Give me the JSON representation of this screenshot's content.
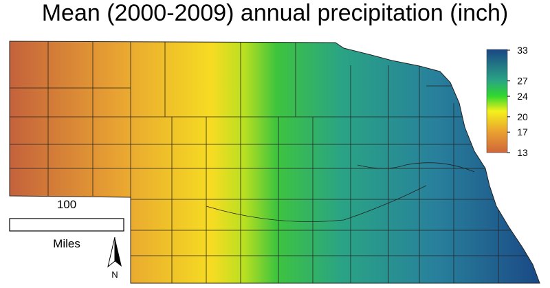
{
  "title": "Mean (2000-2009) annual precipitation (inch)",
  "legend": {
    "ticks": [
      33,
      27,
      24,
      20,
      17,
      13
    ]
  },
  "scale_bar": {
    "distance": "100",
    "unit": "Miles"
  },
  "north_arrow": {
    "label": "N"
  }
}
